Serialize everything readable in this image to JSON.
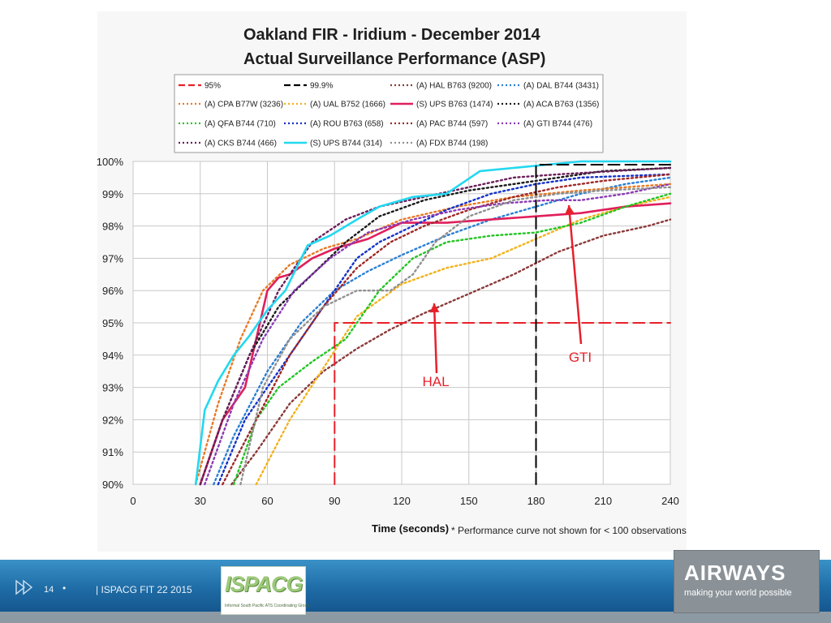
{
  "chart_data": {
    "type": "line",
    "title": "Oakland FIR - Iridium -  December 2014",
    "subtitle": "Actual Surveillance Performance (ASP)",
    "xlabel": "Time (seconds)",
    "note": "* Performance curve not shown for < 100 observations",
    "ylabel": "",
    "xlim": [
      0,
      240
    ],
    "ylim": [
      90,
      100
    ],
    "grid": true,
    "legend_position": "top",
    "x_ticks": [
      "0",
      "30",
      "60",
      "90",
      "120",
      "150",
      "180",
      "210",
      "240"
    ],
    "y_ticks": [
      "90%",
      "91%",
      "92%",
      "93%",
      "94%",
      "95%",
      "96%",
      "97%",
      "98%",
      "99%",
      "100%"
    ],
    "series": [
      {
        "name": "95%",
        "color": "#e8202a",
        "style": "dashed",
        "x": [
          90,
          90,
          240
        ],
        "y": [
          90,
          95,
          95
        ]
      },
      {
        "name": "99.9%",
        "color": "#000000",
        "style": "dashed",
        "x": [
          180,
          180,
          240
        ],
        "y": [
          90,
          99.9,
          99.9
        ]
      },
      {
        "name": "(A) HAL B763 (9200)",
        "color": "#8b3a3a",
        "style": "dotted",
        "x": [
          44,
          55,
          70,
          85,
          100,
          115,
          130,
          150,
          170,
          190,
          210,
          230,
          240
        ],
        "y": [
          90,
          91,
          92.5,
          93.5,
          94.2,
          94.8,
          95.3,
          95.9,
          96.5,
          97.2,
          97.7,
          98,
          98.2
        ]
      },
      {
        "name": "(A) DAL B744 (3431)",
        "color": "#2a7fd4",
        "style": "dotted",
        "x": [
          36,
          45,
          60,
          75,
          90,
          105,
          120,
          140,
          160,
          180,
          200,
          220,
          240
        ],
        "y": [
          90,
          91.5,
          93.5,
          95,
          96,
          96.6,
          97.1,
          97.7,
          98.2,
          98.6,
          99,
          99.3,
          99.5
        ]
      },
      {
        "name": "(A) CPA B77W (3236)",
        "color": "#e87a25",
        "style": "dotted",
        "x": [
          28,
          38,
          48,
          58,
          70,
          85,
          100,
          120,
          145,
          170,
          200,
          220,
          240
        ],
        "y": [
          90,
          92.5,
          94.5,
          96,
          96.8,
          97.3,
          97.6,
          98.2,
          98.6,
          98.9,
          99.1,
          99.2,
          99.3
        ]
      },
      {
        "name": "(A) UAL B752 (1666)",
        "color": "#f2b21c",
        "style": "dotted",
        "x": [
          55,
          70,
          85,
          100,
          120,
          140,
          160,
          180,
          200,
          220,
          240
        ],
        "y": [
          90,
          92,
          93.6,
          95.2,
          96.2,
          96.7,
          97,
          97.6,
          98.2,
          98.6,
          98.9
        ]
      },
      {
        "name": "(S) UPS B763 (1474)",
        "color": "#e01f5b",
        "style": "solid",
        "x": [
          30,
          40,
          50,
          55,
          60,
          65,
          70,
          80,
          90,
          105,
          120,
          140,
          160,
          180,
          200,
          220,
          240
        ],
        "y": [
          90,
          92,
          93,
          94.5,
          96,
          96.4,
          96.5,
          97,
          97.3,
          97.6,
          98.1,
          98.1,
          98.2,
          98.3,
          98.4,
          98.6,
          98.7
        ]
      },
      {
        "name": "(A) ACA B763 (1356)",
        "color": "#1a1a1a",
        "style": "dotted",
        "x": [
          30,
          40,
          52,
          65,
          80,
          95,
          110,
          130,
          150,
          170,
          190,
          210,
          240
        ],
        "y": [
          90,
          92,
          94,
          95.5,
          96.5,
          97.5,
          98.3,
          98.8,
          99.1,
          99.3,
          99.5,
          99.7,
          99.8
        ]
      },
      {
        "name": "(A) QFA B744 (710)",
        "color": "#22c522",
        "style": "dotted",
        "x": [
          45,
          55,
          65,
          80,
          95,
          110,
          125,
          140,
          160,
          180,
          200,
          220,
          240
        ],
        "y": [
          90,
          92,
          93,
          93.8,
          94.5,
          96,
          97,
          97.5,
          97.7,
          97.8,
          98.1,
          98.6,
          99
        ]
      },
      {
        "name": "(A) ROU B763 (658)",
        "color": "#1432c8",
        "style": "dotted",
        "x": [
          38,
          50,
          62,
          75,
          90,
          100,
          110,
          125,
          140,
          160,
          180,
          200,
          240
        ],
        "y": [
          90,
          92,
          93.2,
          94.5,
          96,
          97,
          97.5,
          98,
          98.5,
          99,
          99.3,
          99.5,
          99.6
        ]
      },
      {
        "name": "(A) PAC B744 (597)",
        "color": "#a02828",
        "style": "dotted",
        "x": [
          40,
          55,
          70,
          85,
          100,
          115,
          130,
          150,
          170,
          190,
          210,
          240
        ],
        "y": [
          90,
          92,
          94,
          95.5,
          96.7,
          97.5,
          98,
          98.5,
          98.9,
          99.2,
          99.4,
          99.6
        ]
      },
      {
        "name": "(A) GTI B744 (476)",
        "color": "#8a3ab4",
        "style": "dotted",
        "x": [
          32,
          45,
          58,
          72,
          88,
          105,
          125,
          145,
          165,
          185,
          200,
          220,
          240
        ],
        "y": [
          90,
          92.5,
          94.5,
          96,
          97,
          97.8,
          98.2,
          98.5,
          98.7,
          98.8,
          98.8,
          99,
          99.3
        ]
      },
      {
        "name": "(A) CKS B744 (466)",
        "color": "#6a1f5a",
        "style": "dotted",
        "x": [
          30,
          40,
          52,
          65,
          80,
          95,
          110,
          130,
          150,
          170,
          190,
          215,
          240
        ],
        "y": [
          90,
          92,
          94,
          96,
          97.5,
          98.2,
          98.6,
          98.9,
          99.2,
          99.5,
          99.6,
          99.7,
          99.8
        ]
      },
      {
        "name": "(S) UPS B744 (314)",
        "color": "#22d8f0",
        "style": "solid",
        "x": [
          28,
          32,
          38,
          45,
          52,
          60,
          68,
          78,
          88,
          100,
          110,
          125,
          140,
          155,
          170,
          185,
          200,
          240
        ],
        "y": [
          90,
          92.3,
          93.2,
          94,
          94.6,
          95.4,
          96,
          97.4,
          97.7,
          98.2,
          98.6,
          98.9,
          99,
          99.7,
          99.8,
          99.9,
          100,
          100
        ]
      },
      {
        "name": "(A) FDX B744 (198)",
        "color": "#909090",
        "style": "dotted",
        "x": [
          48,
          58,
          70,
          85,
          100,
          115,
          125,
          135,
          150,
          170,
          190,
          210,
          240
        ],
        "y": [
          90,
          93,
          94.5,
          95.5,
          96,
          96,
          96.5,
          97.5,
          98.3,
          98.8,
          99,
          99.1,
          99.2
        ]
      }
    ],
    "annotations": [
      {
        "text": "HAL",
        "x": 135,
        "y": 95.6
      },
      {
        "text": "GTI",
        "x": 195,
        "y": 98.6
      }
    ]
  },
  "footer": {
    "slide_number": "14",
    "bullet": "•",
    "text": "| ISPACG FIT 22 2015",
    "logo_left": {
      "word": "ISPACG",
      "tagline": "Informal South Pacific ATS Coordinating Group"
    },
    "logo_right": {
      "word": "AIRWAYS",
      "tagline": "making your world possible"
    }
  }
}
